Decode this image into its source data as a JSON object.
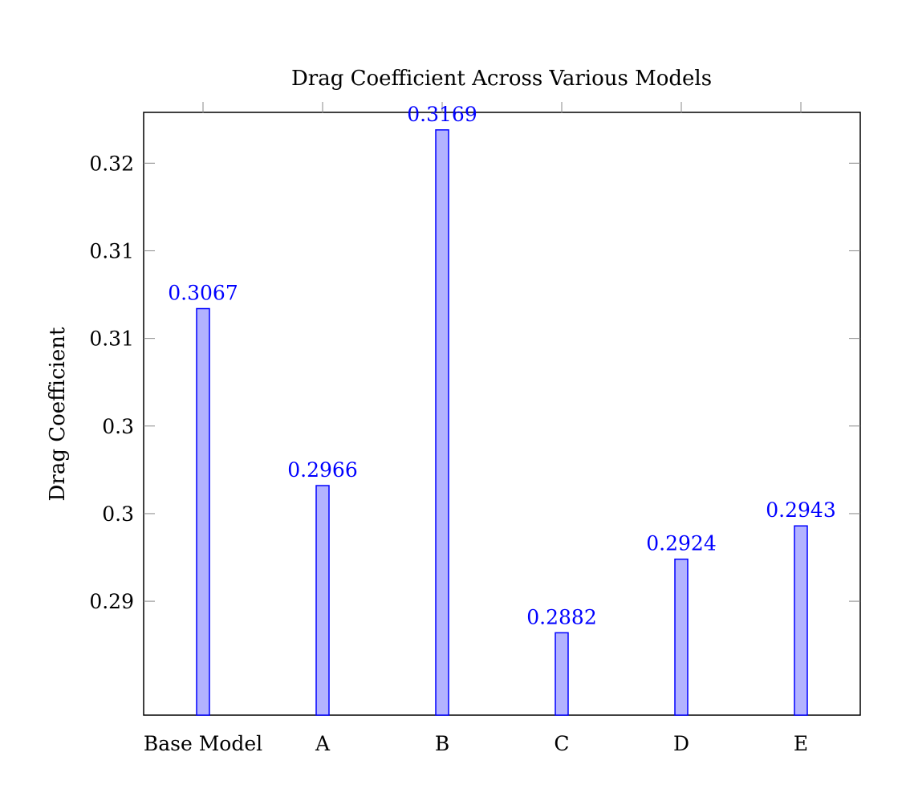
{
  "chart_data": {
    "type": "bar",
    "title": "Drag Coefficient Across Various Models",
    "xlabel": "",
    "ylabel": "Drag Coefficient",
    "categories": [
      "Base Model",
      "A",
      "B",
      "C",
      "D",
      "E"
    ],
    "values": [
      0.3067,
      0.2966,
      0.3169,
      0.2882,
      0.2924,
      0.2943
    ],
    "data_labels": [
      "0.3067",
      "0.2966",
      "0.3169",
      "0.2882",
      "0.2924",
      "0.2943"
    ],
    "ylim": [
      0.2835,
      0.3179
    ],
    "y_ticks": [
      0.29,
      0.295,
      0.3,
      0.305,
      0.31,
      0.315
    ],
    "y_tick_labels": [
      "0.29",
      "0.3",
      "0.3",
      "0.31",
      "0.31",
      "0.32"
    ],
    "grid": false,
    "legend": "none",
    "colors": {
      "bar_fill": "#b3b3ff",
      "bar_stroke": "#0000ff",
      "data_label": "#0000ff",
      "axis": "#000000"
    }
  }
}
